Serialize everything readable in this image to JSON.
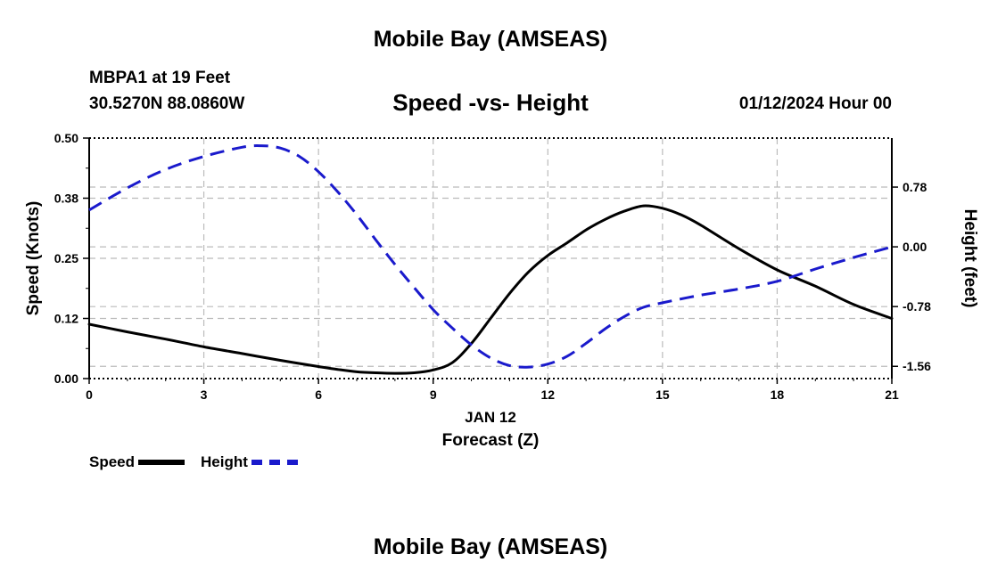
{
  "header": {
    "title": "Mobile Bay (AMSEAS)",
    "station": "MBPA1 at 19 Feet",
    "coords": "30.5270N  88.0860W",
    "subtitle": "Speed -vs- Height",
    "datestamp": "01/12/2024 Hour 00"
  },
  "footer": {
    "title": "Mobile Bay (AMSEAS)"
  },
  "legend": {
    "speed_label": "Speed",
    "height_label": "Height"
  },
  "colors": {
    "speed": "#000000",
    "height": "#1a1acc",
    "grid": "#bbbbbb"
  },
  "chart_data": {
    "type": "line",
    "xlabel": "Forecast (Z)",
    "date_label": "JAN 12",
    "ylabel_left": "Speed (Knots)",
    "ylabel_right": "Height (feet)",
    "x_ticks": [
      0,
      3,
      6,
      9,
      12,
      15,
      18,
      21
    ],
    "x_tick_labels": [
      "0",
      "3",
      "6",
      "9",
      "12",
      "15",
      "18",
      "21"
    ],
    "y_left_ticks": [
      0.0,
      0.125,
      0.25,
      0.375,
      0.5
    ],
    "y_left_tick_labels": [
      "0.00",
      "0.12",
      "0.25",
      "0.38",
      "0.50"
    ],
    "y_right_ticks": [
      -1.56,
      -0.78,
      0.0,
      0.78
    ],
    "y_right_tick_labels": [
      "-1.56",
      "-0.78",
      "0.00",
      "0.78"
    ],
    "xlim": [
      0,
      21
    ],
    "ylim_left": [
      0,
      0.5
    ],
    "ylim_right": [
      -1.72,
      1.42
    ],
    "grid": true,
    "legend_position": "bottom-left",
    "series": [
      {
        "name": "Speed",
        "axis": "left",
        "style": "solid",
        "x": [
          0,
          1,
          2,
          3,
          4,
          5,
          6,
          6.5,
          7,
          7.5,
          8,
          8.5,
          9,
          9.5,
          10,
          10.5,
          11,
          11.5,
          12,
          12.5,
          13,
          13.5,
          14,
          14.5,
          15,
          15.5,
          16,
          17,
          18,
          19,
          20,
          21
        ],
        "y": [
          0.113,
          0.097,
          0.082,
          0.066,
          0.052,
          0.038,
          0.025,
          0.019,
          0.014,
          0.012,
          0.011,
          0.012,
          0.018,
          0.033,
          0.073,
          0.125,
          0.177,
          0.222,
          0.256,
          0.282,
          0.309,
          0.331,
          0.348,
          0.359,
          0.354,
          0.34,
          0.319,
          0.27,
          0.226,
          0.192,
          0.154,
          0.125
        ]
      },
      {
        "name": "Height",
        "axis": "right",
        "style": "dashed",
        "x": [
          0,
          1,
          2,
          3,
          4,
          4.5,
          5,
          5.5,
          6,
          6.5,
          7,
          7.5,
          8,
          8.5,
          9,
          9.5,
          10,
          10.5,
          11,
          11.5,
          12,
          12.5,
          13,
          13.5,
          14,
          14.5,
          15,
          16,
          17,
          18,
          19,
          20,
          21
        ],
        "y": [
          0.48,
          0.77,
          1.01,
          1.18,
          1.3,
          1.32,
          1.29,
          1.18,
          0.98,
          0.72,
          0.42,
          0.09,
          -0.23,
          -0.53,
          -0.82,
          -1.06,
          -1.28,
          -1.45,
          -1.55,
          -1.57,
          -1.53,
          -1.43,
          -1.26,
          -1.07,
          -0.91,
          -0.79,
          -0.73,
          -0.63,
          -0.55,
          -0.45,
          -0.29,
          -0.14,
          0.0
        ]
      }
    ]
  }
}
